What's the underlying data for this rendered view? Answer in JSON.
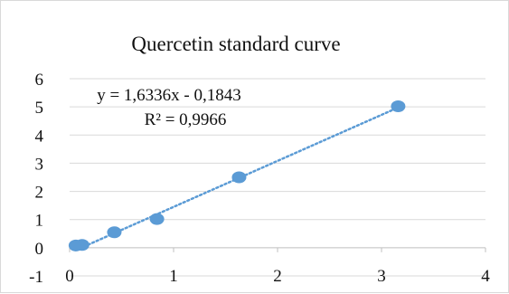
{
  "chart_data": {
    "type": "scatter",
    "title": "Quercetin standard curve",
    "xlabel": "",
    "ylabel": "",
    "xlim": [
      0,
      4
    ],
    "ylim": [
      -1,
      6
    ],
    "x_ticks": [
      "0",
      "1",
      "2",
      "3",
      "4"
    ],
    "y_ticks": [
      "-1",
      "0",
      "1",
      "2",
      "3",
      "4",
      "5",
      "6"
    ],
    "grid": "horizontal",
    "legend": "none",
    "series": [
      {
        "color": "#5b9bd5",
        "x": [
          0.06,
          0.12,
          0.43,
          0.84,
          1.63,
          3.16
        ],
        "y": [
          0.08,
          0.1,
          0.55,
          1.02,
          2.5,
          5.02
        ]
      }
    ],
    "trendline": {
      "type": "linear",
      "style": "dotted",
      "color": "#5b9bd5",
      "slope": 1.6336,
      "intercept": -0.1843,
      "x_range": [
        0.06,
        3.2
      ],
      "equation": "y = 1,6336x - 0,1843",
      "r_squared": "R² = 0,9966"
    },
    "colors": {
      "grid": "#d9d9d9",
      "axis": "#bfbfbf",
      "text": "#111111"
    }
  }
}
